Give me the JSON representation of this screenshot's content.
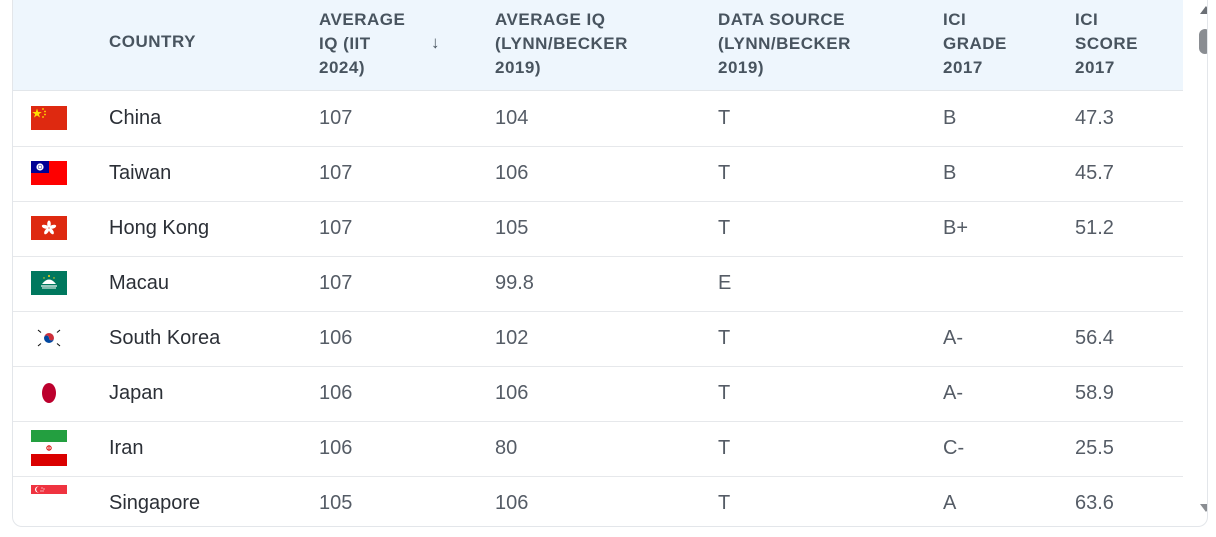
{
  "table": {
    "headers": {
      "country": "COUNTRY",
      "iit": "AVERAGE\nIQ (IIT\n2024)",
      "lynn": "AVERAGE IQ\n(LYNN/BECKER\n2019)",
      "source": "DATA SOURCE\n(LYNN/BECKER\n2019)",
      "grade": "ICI\nGRADE\n2017",
      "score": "ICI\nSCORE\n2017"
    },
    "sort_indicator": "↓",
    "rows": [
      {
        "flag": "china-flag-icon",
        "country": "China",
        "iit": "107",
        "lynn": "104",
        "source": "T",
        "grade": "B",
        "score": "47.3"
      },
      {
        "flag": "taiwan-flag-icon",
        "country": "Taiwan",
        "iit": "107",
        "lynn": "106",
        "source": "T",
        "grade": "B",
        "score": "45.7"
      },
      {
        "flag": "hong-kong-flag-icon",
        "country": "Hong Kong",
        "iit": "107",
        "lynn": "105",
        "source": "T",
        "grade": "B+",
        "score": "51.2"
      },
      {
        "flag": "macau-flag-icon",
        "country": "Macau",
        "iit": "107",
        "lynn": "99.8",
        "source": "E",
        "grade": "",
        "score": ""
      },
      {
        "flag": "south-korea-flag-icon",
        "country": "South Korea",
        "iit": "106",
        "lynn": "102",
        "source": "T",
        "grade": "A-",
        "score": "56.4"
      },
      {
        "flag": "japan-flag-icon",
        "country": "Japan",
        "iit": "106",
        "lynn": "106",
        "source": "T",
        "grade": "A-",
        "score": "58.9"
      },
      {
        "flag": "iran-flag-icon",
        "country": "Iran",
        "iit": "106",
        "lynn": "80",
        "source": "T",
        "grade": "C-",
        "score": "25.5"
      },
      {
        "flag": "singapore-flag-icon",
        "country": "Singapore",
        "iit": "105",
        "lynn": "106",
        "source": "T",
        "grade": "A",
        "score": "63.6"
      }
    ]
  },
  "colors": {
    "header_bg": "#eef6fd",
    "header_text": "#48545f",
    "row_border": "#e6e8eb"
  }
}
